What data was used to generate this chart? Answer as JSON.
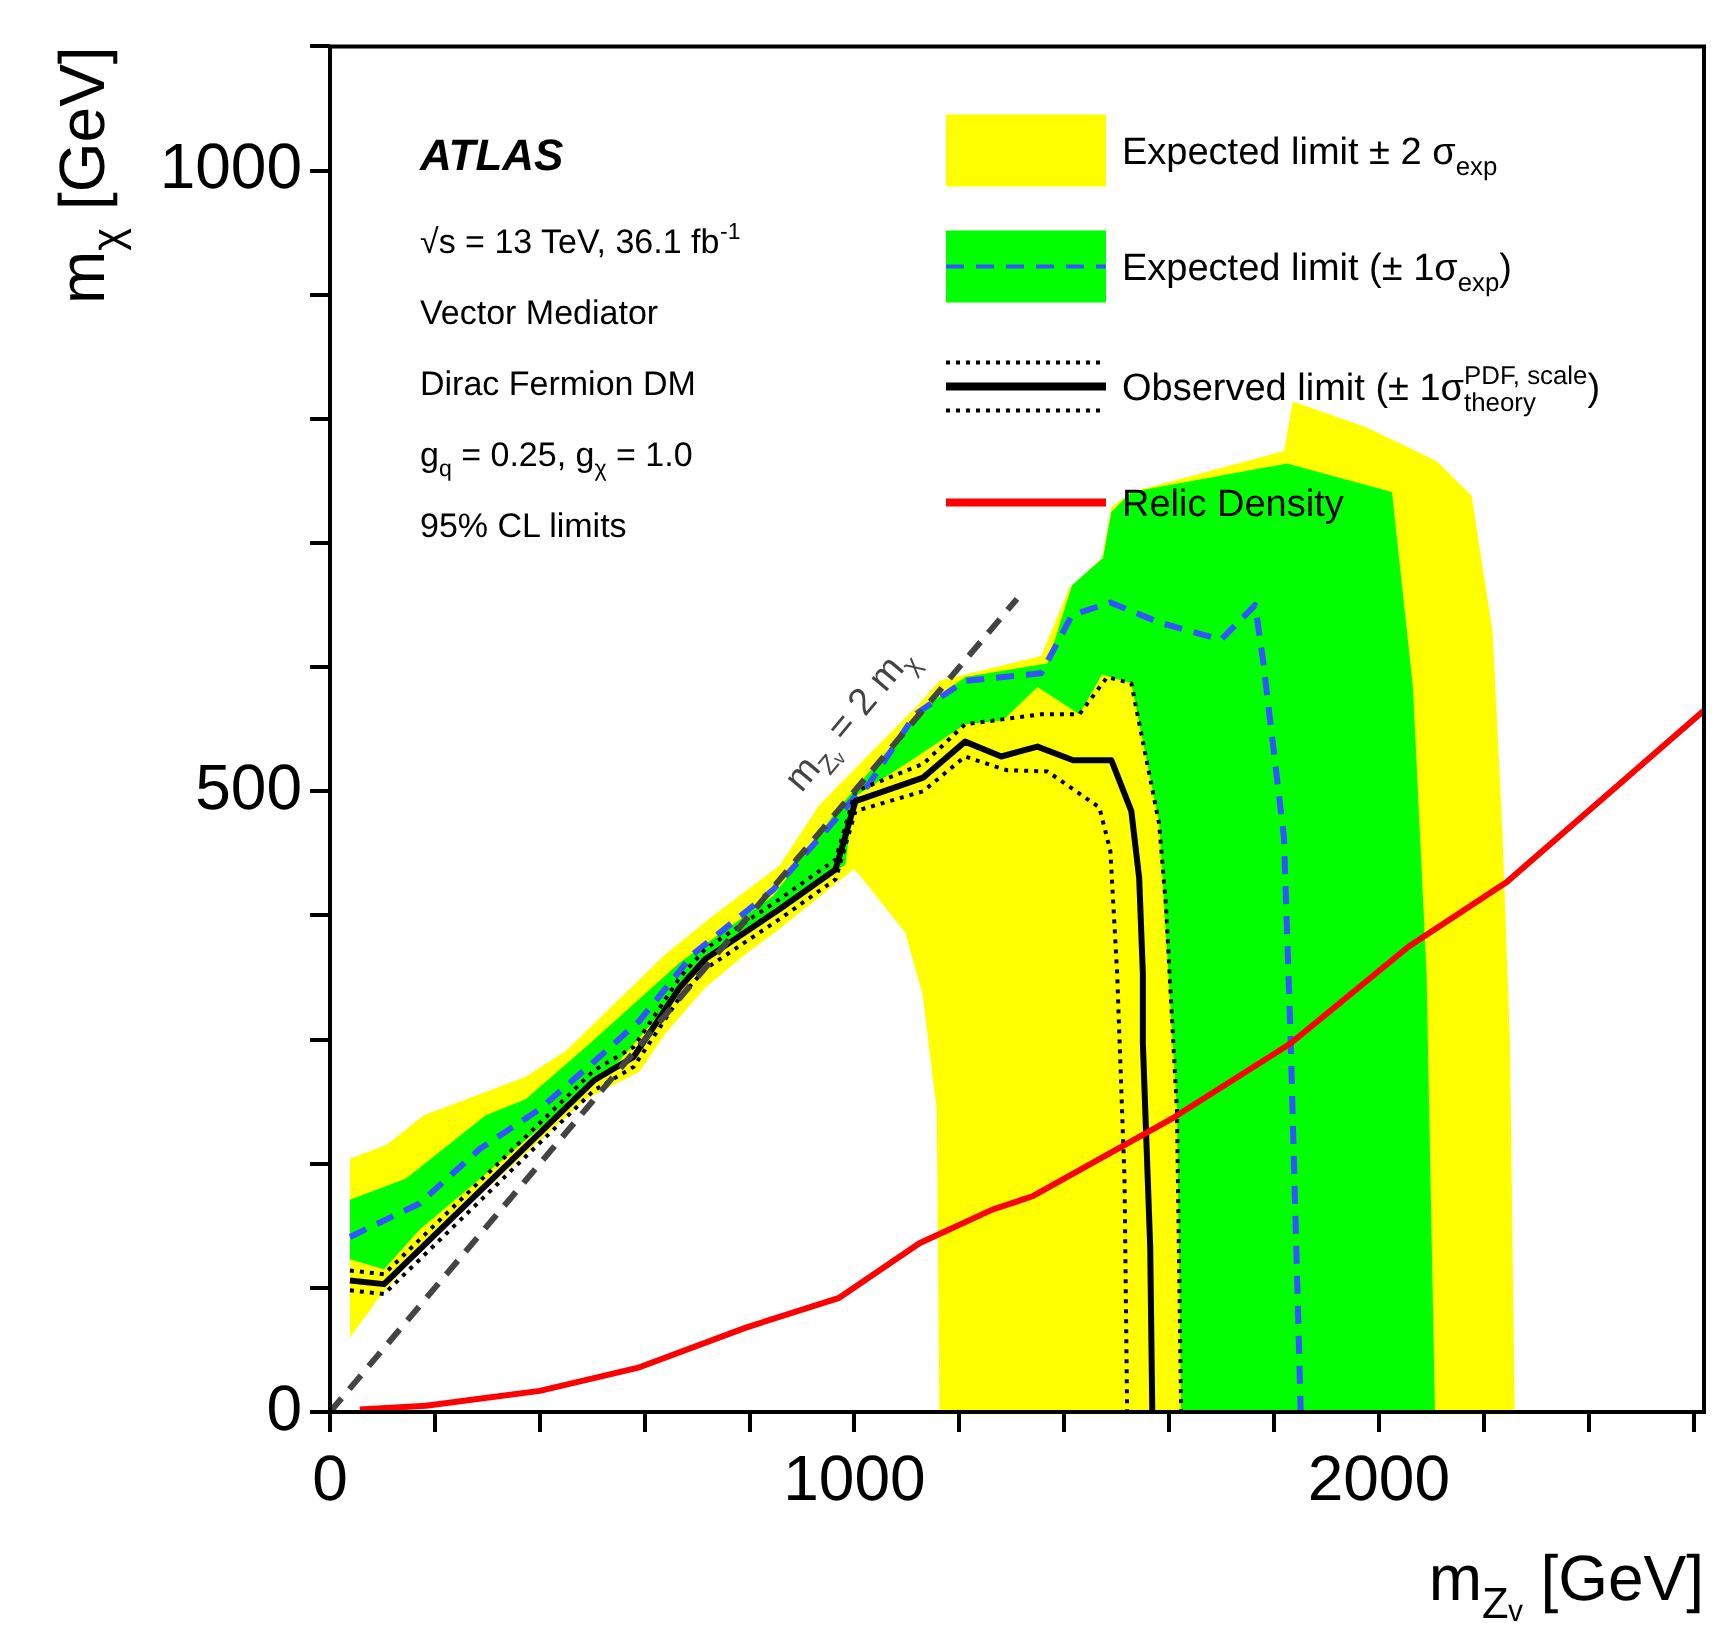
{
  "chart_data": {
    "type": "line",
    "xlabel": "m$_{Zᵥ}$ [GeV]",
    "ylabel": "m$_{χ}$ [GeV]",
    "legend": "top right",
    "xlim": [
      0,
      2620
    ],
    "ylim": [
      0,
      1100
    ],
    "xticks": [
      0,
      {
        "value": 200,
        "label": null
      },
      {
        "value": 400,
        "label": null
      },
      {
        "value": 600,
        "label": null
      },
      {
        "value": 800,
        "label": null
      },
      1000,
      {
        "value": 1200,
        "label": null
      },
      {
        "value": 1400,
        "label": null
      },
      {
        "value": 1600,
        "label": null
      },
      {
        "value": 1800,
        "label": null
      },
      2000,
      {
        "value": 2200,
        "label": null
      },
      {
        "value": 2400,
        "label": null
      },
      {
        "value": 2600,
        "label": null
      }
    ],
    "yticks": [
      0,
      {
        "value": 100,
        "label": null
      },
      {
        "value": 200,
        "label": null
      },
      {
        "value": 300,
        "label": null
      },
      {
        "value": 400,
        "label": null
      },
      500,
      {
        "value": 600,
        "label": null
      },
      {
        "value": 700,
        "label": null
      },
      {
        "value": 800,
        "label": null
      },
      {
        "value": 900,
        "label": null
      },
      1000,
      {
        "value": 1100,
        "label": null
      }
    ],
    "annotations": [
      "ATLAS",
      "√s = 13 TeV, 36.1 fb$^{-1}$",
      "Vector Mediator",
      "Dirac Fermion DM",
      "g$_{q}$ = 0.25, g$_{χ}$ = 1.0",
      "95% CL limits",
      {
        "text": "m$_{Zᵥ}$ = 2 m$_{χ}$",
        "x": 1060,
        "y": 530
      }
    ],
    "series": [
      {
        "type": "area",
        "name": "Expected limit ± 2 σ$_{exp}$",
        "color": "#ffff00",
        "x": [
          38,
          107,
          179,
          373,
          450,
          640,
          731,
          857,
          933,
          1124,
          1162,
          1356,
          1410,
          1472,
          1490,
          1528,
          1819,
          1836,
          1977,
          2110,
          2177,
          2217,
          2236,
          2250,
          2259,
          1162,
          1157,
          1130,
          1097,
          1005,
          998,
          857,
          793,
          716,
          640,
          590,
          488,
          183,
          95,
          38
        ],
        "values": [
          204,
          215,
          239,
          270,
          291,
          369,
          400,
          440,
          489,
          571,
          589,
          609,
          664,
          688,
          729,
          741,
          774,
          814,
          793,
          766,
          738,
          628,
          463,
          297,
          0,
          0,
          243,
          336,
          386,
          435,
          437,
          389,
          369,
          342,
          305,
          274,
          252,
          136,
          93,
          60
        ]
      },
      {
        "type": "area",
        "color": "#00ff00",
        "x": [
          38,
          145,
          297,
          373,
          488,
          667,
          846,
          971,
          1124,
          1170,
          1211,
          1368,
          1415,
          1474,
          1490,
          1528,
          1825,
          2025,
          2065,
          2091,
          2107,
          1623,
          1615,
          1581,
          1528,
          1472,
          1429,
          1349,
          1283,
          1211,
          1105,
          998,
          983,
          857,
          731,
          640,
          552,
          362,
          171,
          103,
          38
        ],
        "values": [
          171,
          188,
          239,
          252,
          294,
          362,
          416,
          487,
          563,
          579,
          592,
          603,
          666,
          688,
          725,
          741,
          764,
          741,
          584,
          353,
          0,
          0,
          243,
          474,
          587,
          594,
          562,
          584,
          557,
          554,
          524,
          495,
          441,
          405,
          369,
          326,
          283,
          215,
          147,
          115,
          123
        ]
      },
      {
        "type": "line",
        "name": "Expected limit (± 1σ$_{exp}$)",
        "color": "#3355ff",
        "line_style": "dashed",
        "x": [
          38,
          171,
          286,
          400,
          503,
          590,
          693,
          846,
          945,
          1010,
          1025,
          1116,
          1211,
          1356,
          1415,
          1488,
          1581,
          1699,
          1764,
          1779,
          1819,
          1832,
          1851
        ],
        "values": [
          141,
          168,
          212,
          244,
          282,
          315,
          369,
          421,
          468,
          500,
          504,
          562,
          589,
          595,
          642,
          652,
          636,
          622,
          650,
          606,
          463,
          297,
          0
        ]
      },
      {
        "type": "line",
        "color": "#000000",
        "line_style": "dotted",
        "x": [
          38,
          103,
          503,
          579,
          667,
          716,
          857,
          964,
          1002,
          1131,
          1211,
          1356,
          1429,
          1482,
          1528,
          1581,
          1594,
          1615,
          1623
        ],
        "values": [
          114,
          111,
          275,
          294,
          350,
          373,
          413,
          445,
          500,
          522,
          554,
          562,
          562,
          592,
          587,
          474,
          408,
          243,
          0
        ]
      },
      {
        "type": "line",
        "color": "#000000",
        "line_style": "dotted",
        "x": [
          38,
          103,
          503,
          579,
          667,
          716,
          857,
          964,
          1002,
          1131,
          1211,
          1290,
          1368,
          1467,
          1488,
          1501,
          1515,
          1520
        ],
        "values": [
          98,
          95,
          259,
          278,
          334,
          357,
          397,
          429,
          484,
          500,
          528,
          517,
          516,
          487,
          452,
          353,
          188,
          0
        ]
      },
      {
        "type": "line",
        "name": "Observed limit (± 1σ$^{PDF, scale}$$_{theory}$)",
        "color": "#000000",
        "line_style": "solid",
        "x": [
          38,
          103,
          503,
          579,
          667,
          716,
          857,
          964,
          1002,
          1131,
          1211,
          1280,
          1349,
          1417,
          1490,
          1528,
          1543,
          1550,
          1550,
          1564,
          1568
        ],
        "values": [
          106,
          103,
          267,
          286,
          342,
          365,
          405,
          437,
          492,
          511,
          540,
          528,
          536,
          525,
          525,
          484,
          430,
          353,
          297,
          133,
          0
        ]
      },
      {
        "type": "line",
        "name": "Relic Density",
        "color": "#ff0000",
        "line_style": "solid",
        "x": [
          57,
          183,
          400,
          590,
          793,
          971,
          1124,
          1263,
          1341,
          1608,
          1832,
          2057,
          2244,
          2620
        ],
        "values": [
          2,
          5,
          17,
          36,
          68,
          92,
          136,
          163,
          174,
          237,
          297,
          375,
          427,
          565
        ]
      },
      {
        "type": "line",
        "color": "#444444",
        "line_style": "dashed",
        "x": [
          0,
          1310
        ],
        "values": [
          0,
          655
        ]
      }
    ]
  }
}
